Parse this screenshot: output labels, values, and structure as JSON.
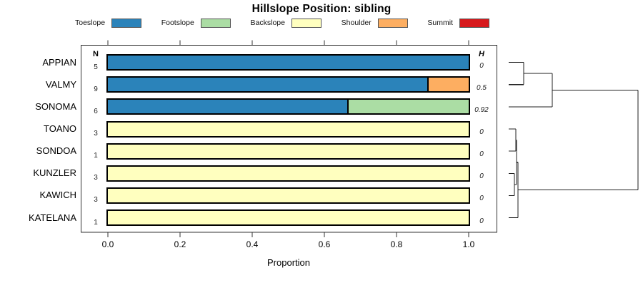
{
  "chart_data": {
    "type": "bar",
    "stacked": true,
    "orientation": "horizontal",
    "title": "Hillslope Position: sibling",
    "xlabel": "Proportion",
    "x_ticks": [
      0.0,
      0.2,
      0.4,
      0.6,
      0.8,
      1.0
    ],
    "xlim": [
      0,
      1.08
    ],
    "grid": false,
    "legend_position": "top",
    "n_label": "N",
    "h_label": "H",
    "legend": [
      {
        "label": "Toeslope",
        "color": "#2B83BA"
      },
      {
        "label": "Footslope",
        "color": "#ABDDA4"
      },
      {
        "label": "Backslope",
        "color": "#FFFFBF"
      },
      {
        "label": "Shoulder",
        "color": "#FDAE61"
      },
      {
        "label": "Summit",
        "color": "#D7191C"
      }
    ],
    "rows": [
      {
        "name": "APPIAN",
        "n": "5",
        "h": "0",
        "segments": [
          {
            "category": "Toeslope",
            "value": 1.0
          }
        ]
      },
      {
        "name": "VALMY",
        "n": "9",
        "h": "0.5",
        "segments": [
          {
            "category": "Toeslope",
            "value": 0.889
          },
          {
            "category": "Shoulder",
            "value": 0.111
          }
        ]
      },
      {
        "name": "SONOMA",
        "n": "6",
        "h": "0.92",
        "segments": [
          {
            "category": "Toeslope",
            "value": 0.667
          },
          {
            "category": "Footslope",
            "value": 0.333
          }
        ]
      },
      {
        "name": "TOANO",
        "n": "3",
        "h": "0",
        "segments": [
          {
            "category": "Backslope",
            "value": 1.0
          }
        ]
      },
      {
        "name": "SONDOA",
        "n": "1",
        "h": "0",
        "segments": [
          {
            "category": "Backslope",
            "value": 1.0
          }
        ]
      },
      {
        "name": "KUNZLER",
        "n": "3",
        "h": "0",
        "segments": [
          {
            "category": "Backslope",
            "value": 1.0
          }
        ]
      },
      {
        "name": "KAWICH",
        "n": "3",
        "h": "0",
        "segments": [
          {
            "category": "Backslope",
            "value": 1.0
          }
        ]
      },
      {
        "name": "KATELANA",
        "n": "1",
        "h": "0",
        "segments": [
          {
            "category": "Backslope",
            "value": 1.0
          }
        ]
      }
    ],
    "dendrogram": {
      "merges": [
        {
          "id": "m1",
          "a": "KUNZLER",
          "b": "KAWICH",
          "h": 0.044
        },
        {
          "id": "m2",
          "a": "TOANO",
          "b": "SONDOA",
          "h": 0.055
        },
        {
          "id": "m3",
          "a": "m2",
          "b": "m1",
          "h": 0.061
        },
        {
          "id": "m4",
          "a": "m3",
          "b": "KATELANA",
          "h": 0.072
        },
        {
          "id": "m5",
          "a": "APPIAN",
          "b": "VALMY",
          "h": 0.116
        },
        {
          "id": "m6",
          "a": "m5",
          "b": "SONOMA",
          "h": 0.337
        },
        {
          "id": "m7",
          "a": "m6",
          "b": "m4",
          "h": 1.0
        }
      ]
    }
  }
}
